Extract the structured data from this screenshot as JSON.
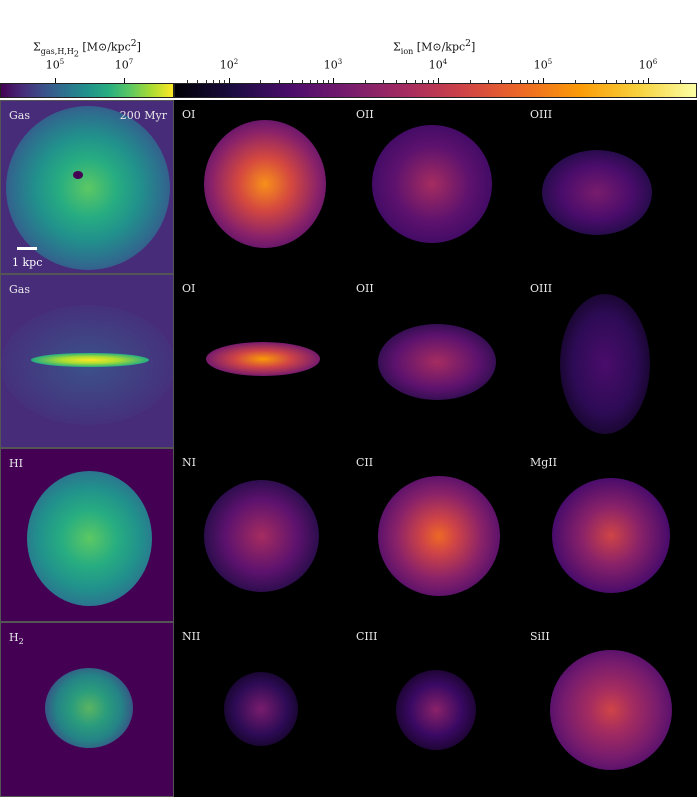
{
  "colorbars": {
    "gas": {
      "label_main": "Σ",
      "label_sub": "gas,H,H",
      "label_sub2": "2",
      "label_unit": " [M⊙/kpc",
      "label_unit_sup": "2",
      "label_close": "]",
      "ticks": [
        {
          "base": "10",
          "exp": "5"
        },
        {
          "base": "10",
          "exp": "7"
        }
      ],
      "colormap": "viridis"
    },
    "ion": {
      "label_main": "Σ",
      "label_sub": "ion",
      "label_unit": " [M⊙/kpc",
      "label_unit_sup": "2",
      "label_close": "]",
      "ticks": [
        {
          "base": "10",
          "exp": "2"
        },
        {
          "base": "10",
          "exp": "3"
        },
        {
          "base": "10",
          "exp": "4"
        },
        {
          "base": "10",
          "exp": "5"
        },
        {
          "base": "10",
          "exp": "6"
        }
      ],
      "colormap": "inferno"
    }
  },
  "panels": {
    "row1": {
      "gas": "Gas",
      "time": "200 Myr",
      "scale": "1 kpc",
      "ion1": "OI",
      "ion2": "OII",
      "ion3": "OIII"
    },
    "row2": {
      "gas": "Gas",
      "ion1": "OI",
      "ion2": "OII",
      "ion3": "OIII"
    },
    "row3": {
      "gas": "HI",
      "ion1": "NI",
      "ion2": "CII",
      "ion3": "MgII"
    },
    "row4": {
      "gas": "H",
      "gas_sub": "2",
      "ion1": "NII",
      "ion2": "CIII",
      "ion3": "SiII"
    }
  },
  "colors": {
    "gas_background": "#440154",
    "ion_background": "#000004"
  }
}
